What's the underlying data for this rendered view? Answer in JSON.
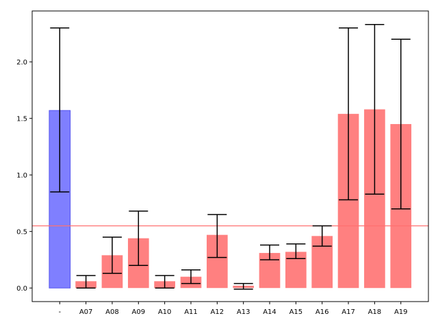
{
  "chart_data": {
    "type": "bar",
    "title": "",
    "xlabel": "",
    "ylabel": "",
    "ylim": [
      -0.12,
      2.45
    ],
    "yticks": [
      0.0,
      0.5,
      1.0,
      1.5,
      2.0
    ],
    "ytick_labels": [
      "0.0",
      "0.5",
      "1.0",
      "1.5",
      "2.0"
    ],
    "categories": [
      "-",
      "A07",
      "A08",
      "A09",
      "A10",
      "A11",
      "A12",
      "A13",
      "A14",
      "A15",
      "A16",
      "A17",
      "A18",
      "A19"
    ],
    "values": [
      1.57,
      0.06,
      0.29,
      0.44,
      0.06,
      0.1,
      0.47,
      0.02,
      0.31,
      0.32,
      0.46,
      1.54,
      1.58,
      1.45
    ],
    "error_low": [
      0.85,
      0.0,
      0.13,
      0.2,
      0.0,
      0.04,
      0.27,
      -0.01,
      0.25,
      0.26,
      0.37,
      0.78,
      0.83,
      0.7
    ],
    "error_high": [
      2.3,
      0.11,
      0.45,
      0.68,
      0.11,
      0.16,
      0.65,
      0.04,
      0.38,
      0.39,
      0.55,
      2.3,
      2.33,
      2.2
    ],
    "bar_colors": [
      "#7f7fff",
      "#ff8080",
      "#ff8080",
      "#ff8080",
      "#ff8080",
      "#ff8080",
      "#ff8080",
      "#ff8080",
      "#ff8080",
      "#ff8080",
      "#ff8080",
      "#ff8080",
      "#ff8080",
      "#ff8080"
    ],
    "bar_edge_colors": [
      "#5555ee",
      null,
      null,
      null,
      null,
      null,
      null,
      null,
      null,
      null,
      null,
      null,
      null,
      null
    ],
    "reference_line": {
      "y": 0.55,
      "color": "#ff7070"
    },
    "grid": false,
    "legend": "none"
  }
}
